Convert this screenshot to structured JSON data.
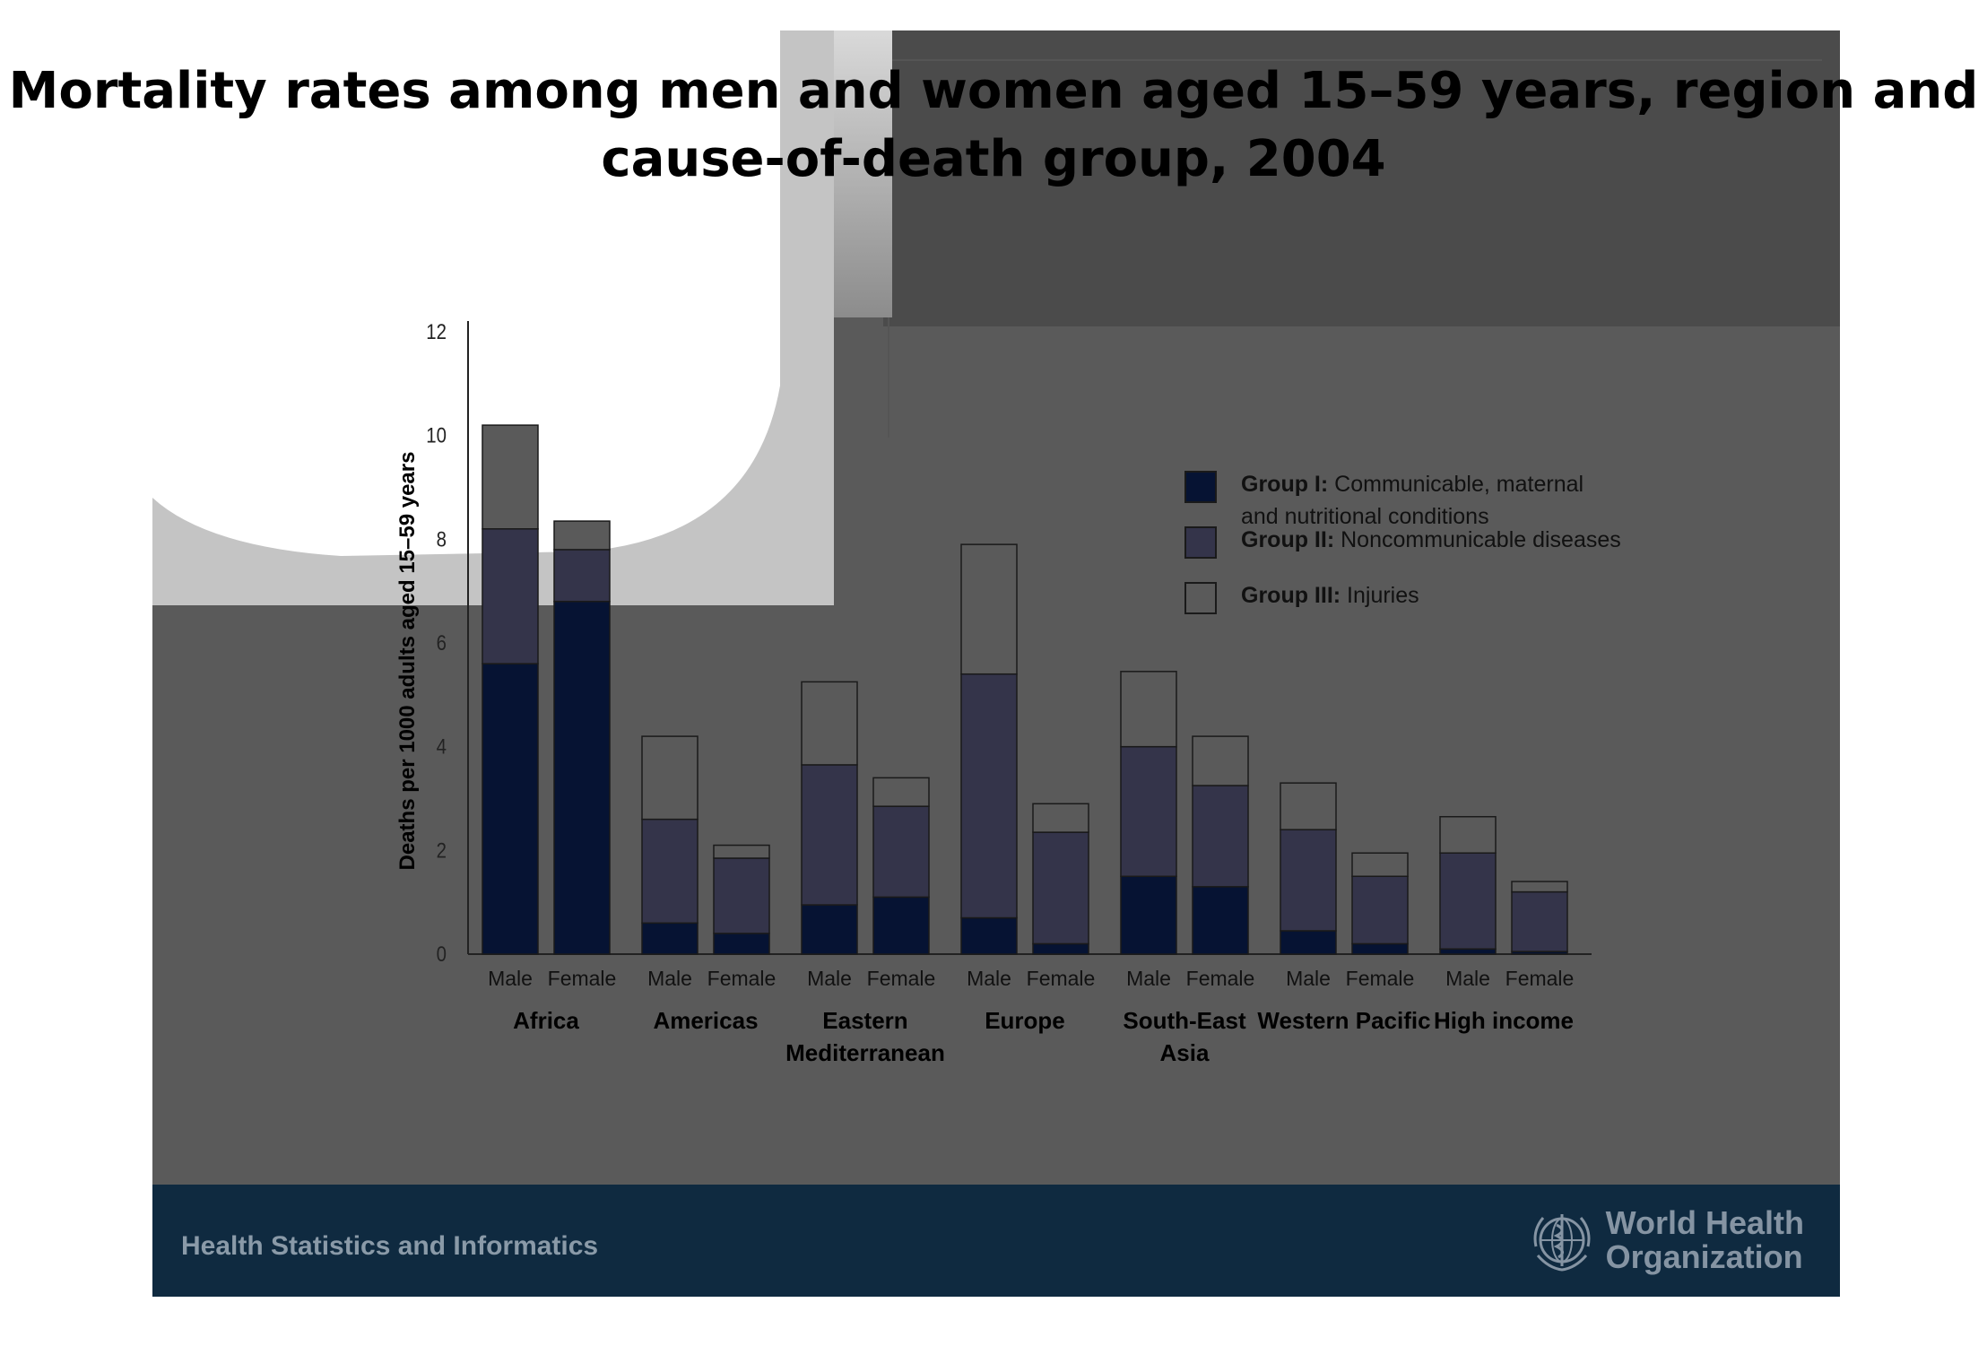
{
  "slide": {
    "title": "Mortality rates among men and women aged 15–59 years, region and cause-of-death group, 2004",
    "footer_text": "Health Statistics and Informatics",
    "org_name_line1": "World Health",
    "org_name_line2": "Organization",
    "logo_icon": "who-emblem-icon",
    "colors": {
      "background": "#5a5a5a",
      "footer": "#0f2a40",
      "group1": "#061333",
      "group2": "#34344a",
      "group3": "#5a5a5a"
    }
  },
  "chart_data": {
    "type": "bar",
    "stacked": true,
    "title": "Mortality rates among men and women aged 15–59 years, region and cause-of-death group, 2004",
    "ylabel": "Deaths per 1000 adults aged 15–59 years",
    "xlabel": "",
    "ylim": [
      0,
      12
    ],
    "yticks": [
      0,
      2,
      4,
      6,
      8,
      10,
      12
    ],
    "grid": false,
    "legend_position": "right",
    "regions": [
      "Africa",
      "Americas",
      "Eastern Mediterranean",
      "Europe",
      "South-East Asia",
      "Western Pacific",
      "High income"
    ],
    "region_label_lines": [
      [
        "Africa"
      ],
      [
        "Americas"
      ],
      [
        "Eastern",
        "Mediterranean"
      ],
      [
        "Europe"
      ],
      [
        "South-East",
        "Asia"
      ],
      [
        "Western Pacific"
      ],
      [
        "High income"
      ]
    ],
    "sexes": [
      "Male",
      "Female"
    ],
    "series": [
      {
        "name": "Group I: Communicable, maternal and nutritional conditions",
        "legend_bold": "Group I:",
        "legend_lines": [
          "Communicable, maternal",
          "and nutritional conditions"
        ],
        "color": "#061333",
        "values": [
          5.6,
          6.8,
          0.6,
          0.4,
          0.95,
          1.1,
          0.7,
          0.2,
          1.5,
          1.3,
          0.45,
          0.2,
          0.1,
          0.05
        ]
      },
      {
        "name": "Group II: Noncommunicable diseases",
        "legend_bold": "Group II:",
        "legend_lines": [
          "Noncommunicable diseases"
        ],
        "color": "#34344a",
        "values": [
          2.6,
          1.0,
          2.0,
          1.45,
          2.7,
          1.75,
          4.7,
          2.15,
          2.5,
          1.95,
          1.95,
          1.3,
          1.85,
          1.15
        ]
      },
      {
        "name": "Group III: Injuries",
        "legend_bold": "Group III:",
        "legend_lines": [
          "Injuries"
        ],
        "color": "#5a5a5a",
        "values": [
          2.0,
          0.55,
          1.6,
          0.25,
          1.6,
          0.55,
          2.5,
          0.55,
          1.45,
          0.95,
          0.9,
          0.45,
          0.7,
          0.2
        ]
      }
    ]
  }
}
